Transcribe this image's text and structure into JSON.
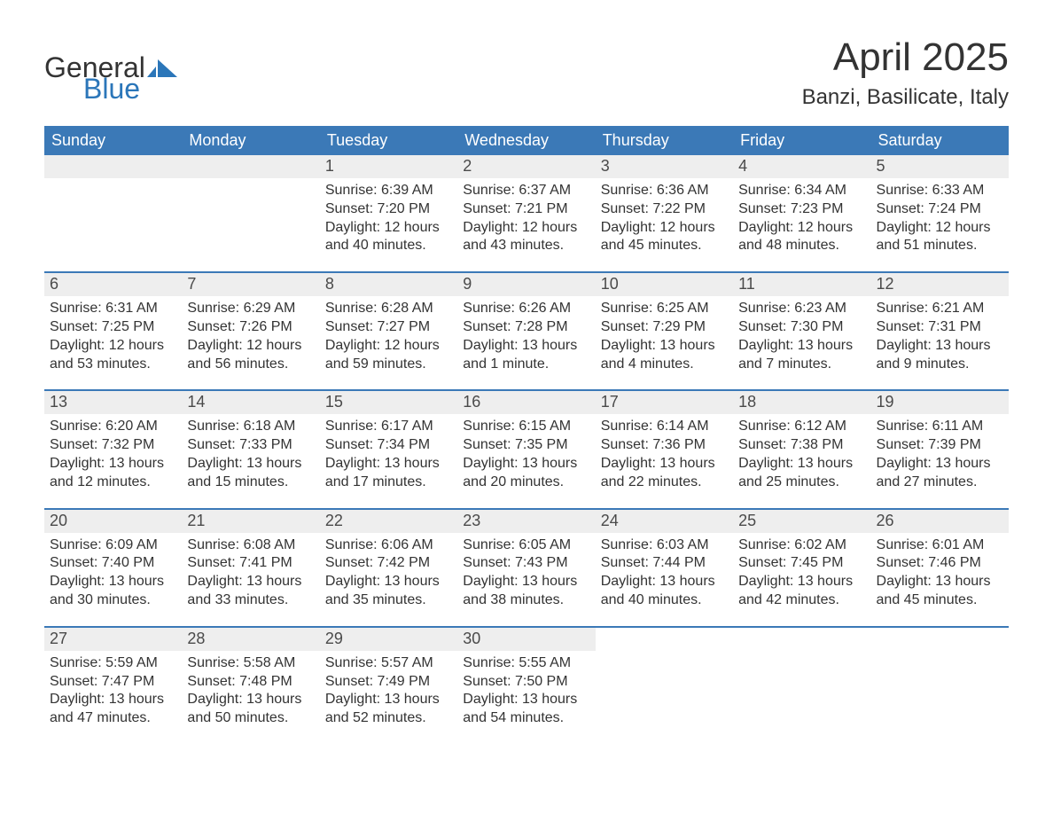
{
  "brand": {
    "part1": "General",
    "part2": "Blue"
  },
  "title": {
    "month": "April 2025",
    "location": "Banzi, Basilicate, Italy"
  },
  "colors": {
    "header_bg": "#3b79b7",
    "header_text": "#ffffff",
    "daynum_bg": "#eeeeee",
    "rule": "#3b79b7",
    "body_text": "#333333",
    "brand_blue": "#2b76b9",
    "page_bg": "#ffffff"
  },
  "weekdays": [
    "Sunday",
    "Monday",
    "Tuesday",
    "Wednesday",
    "Thursday",
    "Friday",
    "Saturday"
  ],
  "weeks": [
    [
      {
        "day": "",
        "sunrise": "",
        "sunset": "",
        "daylight": ""
      },
      {
        "day": "",
        "sunrise": "",
        "sunset": "",
        "daylight": ""
      },
      {
        "day": "1",
        "sunrise": "Sunrise: 6:39 AM",
        "sunset": "Sunset: 7:20 PM",
        "daylight": "Daylight: 12 hours and 40 minutes."
      },
      {
        "day": "2",
        "sunrise": "Sunrise: 6:37 AM",
        "sunset": "Sunset: 7:21 PM",
        "daylight": "Daylight: 12 hours and 43 minutes."
      },
      {
        "day": "3",
        "sunrise": "Sunrise: 6:36 AM",
        "sunset": "Sunset: 7:22 PM",
        "daylight": "Daylight: 12 hours and 45 minutes."
      },
      {
        "day": "4",
        "sunrise": "Sunrise: 6:34 AM",
        "sunset": "Sunset: 7:23 PM",
        "daylight": "Daylight: 12 hours and 48 minutes."
      },
      {
        "day": "5",
        "sunrise": "Sunrise: 6:33 AM",
        "sunset": "Sunset: 7:24 PM",
        "daylight": "Daylight: 12 hours and 51 minutes."
      }
    ],
    [
      {
        "day": "6",
        "sunrise": "Sunrise: 6:31 AM",
        "sunset": "Sunset: 7:25 PM",
        "daylight": "Daylight: 12 hours and 53 minutes."
      },
      {
        "day": "7",
        "sunrise": "Sunrise: 6:29 AM",
        "sunset": "Sunset: 7:26 PM",
        "daylight": "Daylight: 12 hours and 56 minutes."
      },
      {
        "day": "8",
        "sunrise": "Sunrise: 6:28 AM",
        "sunset": "Sunset: 7:27 PM",
        "daylight": "Daylight: 12 hours and 59 minutes."
      },
      {
        "day": "9",
        "sunrise": "Sunrise: 6:26 AM",
        "sunset": "Sunset: 7:28 PM",
        "daylight": "Daylight: 13 hours and 1 minute."
      },
      {
        "day": "10",
        "sunrise": "Sunrise: 6:25 AM",
        "sunset": "Sunset: 7:29 PM",
        "daylight": "Daylight: 13 hours and 4 minutes."
      },
      {
        "day": "11",
        "sunrise": "Sunrise: 6:23 AM",
        "sunset": "Sunset: 7:30 PM",
        "daylight": "Daylight: 13 hours and 7 minutes."
      },
      {
        "day": "12",
        "sunrise": "Sunrise: 6:21 AM",
        "sunset": "Sunset: 7:31 PM",
        "daylight": "Daylight: 13 hours and 9 minutes."
      }
    ],
    [
      {
        "day": "13",
        "sunrise": "Sunrise: 6:20 AM",
        "sunset": "Sunset: 7:32 PM",
        "daylight": "Daylight: 13 hours and 12 minutes."
      },
      {
        "day": "14",
        "sunrise": "Sunrise: 6:18 AM",
        "sunset": "Sunset: 7:33 PM",
        "daylight": "Daylight: 13 hours and 15 minutes."
      },
      {
        "day": "15",
        "sunrise": "Sunrise: 6:17 AM",
        "sunset": "Sunset: 7:34 PM",
        "daylight": "Daylight: 13 hours and 17 minutes."
      },
      {
        "day": "16",
        "sunrise": "Sunrise: 6:15 AM",
        "sunset": "Sunset: 7:35 PM",
        "daylight": "Daylight: 13 hours and 20 minutes."
      },
      {
        "day": "17",
        "sunrise": "Sunrise: 6:14 AM",
        "sunset": "Sunset: 7:36 PM",
        "daylight": "Daylight: 13 hours and 22 minutes."
      },
      {
        "day": "18",
        "sunrise": "Sunrise: 6:12 AM",
        "sunset": "Sunset: 7:38 PM",
        "daylight": "Daylight: 13 hours and 25 minutes."
      },
      {
        "day": "19",
        "sunrise": "Sunrise: 6:11 AM",
        "sunset": "Sunset: 7:39 PM",
        "daylight": "Daylight: 13 hours and 27 minutes."
      }
    ],
    [
      {
        "day": "20",
        "sunrise": "Sunrise: 6:09 AM",
        "sunset": "Sunset: 7:40 PM",
        "daylight": "Daylight: 13 hours and 30 minutes."
      },
      {
        "day": "21",
        "sunrise": "Sunrise: 6:08 AM",
        "sunset": "Sunset: 7:41 PM",
        "daylight": "Daylight: 13 hours and 33 minutes."
      },
      {
        "day": "22",
        "sunrise": "Sunrise: 6:06 AM",
        "sunset": "Sunset: 7:42 PM",
        "daylight": "Daylight: 13 hours and 35 minutes."
      },
      {
        "day": "23",
        "sunrise": "Sunrise: 6:05 AM",
        "sunset": "Sunset: 7:43 PM",
        "daylight": "Daylight: 13 hours and 38 minutes."
      },
      {
        "day": "24",
        "sunrise": "Sunrise: 6:03 AM",
        "sunset": "Sunset: 7:44 PM",
        "daylight": "Daylight: 13 hours and 40 minutes."
      },
      {
        "day": "25",
        "sunrise": "Sunrise: 6:02 AM",
        "sunset": "Sunset: 7:45 PM",
        "daylight": "Daylight: 13 hours and 42 minutes."
      },
      {
        "day": "26",
        "sunrise": "Sunrise: 6:01 AM",
        "sunset": "Sunset: 7:46 PM",
        "daylight": "Daylight: 13 hours and 45 minutes."
      }
    ],
    [
      {
        "day": "27",
        "sunrise": "Sunrise: 5:59 AM",
        "sunset": "Sunset: 7:47 PM",
        "daylight": "Daylight: 13 hours and 47 minutes."
      },
      {
        "day": "28",
        "sunrise": "Sunrise: 5:58 AM",
        "sunset": "Sunset: 7:48 PM",
        "daylight": "Daylight: 13 hours and 50 minutes."
      },
      {
        "day": "29",
        "sunrise": "Sunrise: 5:57 AM",
        "sunset": "Sunset: 7:49 PM",
        "daylight": "Daylight: 13 hours and 52 minutes."
      },
      {
        "day": "30",
        "sunrise": "Sunrise: 5:55 AM",
        "sunset": "Sunset: 7:50 PM",
        "daylight": "Daylight: 13 hours and 54 minutes."
      },
      {
        "day": "",
        "sunrise": "",
        "sunset": "",
        "daylight": ""
      },
      {
        "day": "",
        "sunrise": "",
        "sunset": "",
        "daylight": ""
      },
      {
        "day": "",
        "sunrise": "",
        "sunset": "",
        "daylight": ""
      }
    ]
  ]
}
